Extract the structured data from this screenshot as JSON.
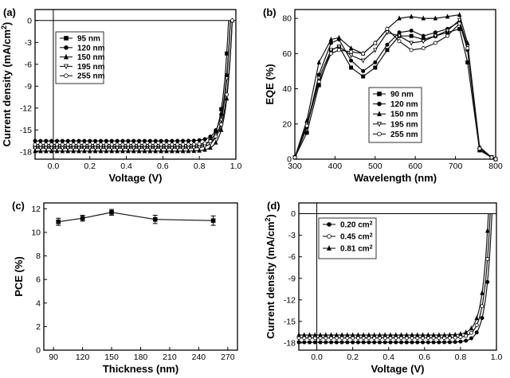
{
  "chart_data": [
    {
      "panel": "(a)",
      "type": "line",
      "xlabel": "Voltage (V)",
      "ylabel": "Current density (mA/cm",
      "ylabel_sup": "2",
      "ylabel_end": ")",
      "xlim": [
        -0.1,
        1.0
      ],
      "ylim": [
        -19,
        1.5
      ],
      "xticks": [
        0.0,
        0.2,
        0.4,
        0.6,
        0.8,
        1.0
      ],
      "xtick_labels": [
        "0.0",
        "0.2",
        "0.4",
        "0.6",
        "0.8",
        "1.0"
      ],
      "yticks": [
        0,
        -3,
        -6,
        -9,
        -12,
        -15,
        -18
      ],
      "ytick_labels": [
        "0",
        "-3",
        "-6",
        "-9",
        "-12",
        "-15",
        "-18"
      ],
      "legend_position": "top-left",
      "series": [
        {
          "name": "95 nm",
          "marker": "square",
          "jsc": -17.3,
          "voc": 0.96
        },
        {
          "name": "120 nm",
          "marker": "circle",
          "jsc": -16.5,
          "voc": 0.97
        },
        {
          "name": "150 nm",
          "marker": "triangle",
          "jsc": -17.9,
          "voc": 0.98
        },
        {
          "name": "195 nm",
          "marker": "triangle-down-open",
          "jsc": -17.5,
          "voc": 0.97
        },
        {
          "name": "255 nm",
          "marker": "circle-open",
          "jsc": -17.0,
          "voc": 0.98
        }
      ]
    },
    {
      "panel": "(b)",
      "type": "line",
      "xlabel": "Wavelength (nm)",
      "ylabel": "EQE (%)",
      "xlim": [
        300,
        800
      ],
      "ylim": [
        0,
        85
      ],
      "xticks": [
        300,
        400,
        500,
        600,
        700,
        800
      ],
      "xtick_labels": [
        "300",
        "400",
        "500",
        "600",
        "700",
        "800"
      ],
      "yticks": [
        0,
        20,
        40,
        60,
        80
      ],
      "ytick_labels": [
        "0",
        "20",
        "40",
        "60",
        "80"
      ],
      "legend_position": "bottom-center",
      "series": [
        {
          "name": "90 nm",
          "marker": "square",
          "x": [
            300,
            330,
            360,
            390,
            410,
            440,
            470,
            500,
            530,
            560,
            590,
            620,
            650,
            680,
            710,
            730,
            760,
            790,
            800
          ],
          "values": [
            1,
            15,
            42,
            62,
            64,
            52,
            47,
            52,
            62,
            70,
            70,
            68,
            70,
            72,
            74,
            55,
            5,
            1,
            0
          ]
        },
        {
          "name": "120 nm",
          "marker": "circle",
          "x": [
            300,
            330,
            360,
            390,
            410,
            440,
            470,
            500,
            530,
            560,
            590,
            620,
            650,
            680,
            710,
            730,
            760,
            790,
            800
          ],
          "values": [
            1,
            18,
            48,
            66,
            68,
            56,
            50,
            55,
            65,
            72,
            73,
            70,
            72,
            74,
            78,
            62,
            6,
            1,
            0
          ]
        },
        {
          "name": "150 nm",
          "marker": "triangle",
          "x": [
            300,
            330,
            360,
            390,
            410,
            440,
            470,
            500,
            530,
            560,
            590,
            620,
            650,
            680,
            710,
            730,
            760,
            790,
            800
          ],
          "values": [
            1,
            22,
            55,
            68,
            69,
            63,
            60,
            66,
            74,
            80,
            81,
            80,
            80,
            81,
            82,
            66,
            7,
            1,
            0
          ]
        },
        {
          "name": "195 nm",
          "marker": "triangle-down-open",
          "x": [
            300,
            330,
            360,
            390,
            410,
            440,
            470,
            500,
            530,
            560,
            590,
            620,
            650,
            680,
            710,
            730,
            760,
            790,
            800
          ],
          "values": [
            1,
            20,
            46,
            62,
            64,
            59,
            56,
            62,
            72,
            70,
            66,
            67,
            70,
            73,
            79,
            64,
            6,
            1,
            0
          ]
        },
        {
          "name": "255 nm",
          "marker": "circle-open",
          "x": [
            300,
            330,
            360,
            390,
            410,
            440,
            470,
            500,
            530,
            560,
            590,
            620,
            650,
            680,
            710,
            730,
            760,
            790,
            800
          ],
          "values": [
            1,
            19,
            44,
            60,
            62,
            61,
            60,
            66,
            74,
            67,
            62,
            63,
            66,
            70,
            77,
            63,
            6,
            1,
            0
          ]
        }
      ]
    },
    {
      "panel": "(c)",
      "type": "line",
      "xlabel": "Thickness (nm)",
      "ylabel": "PCE (%)",
      "xlim": [
        80,
        280
      ],
      "ylim": [
        0,
        12.5
      ],
      "xticks": [
        90,
        120,
        150,
        180,
        210,
        240,
        270
      ],
      "xtick_labels": [
        "90",
        "120",
        "150",
        "180",
        "210",
        "240",
        "270"
      ],
      "yticks": [
        0,
        2,
        4,
        6,
        8,
        10,
        12
      ],
      "ytick_labels": [
        "0",
        "2",
        "4",
        "6",
        "8",
        "10",
        "12"
      ],
      "series": [
        {
          "name": "PCE",
          "x": [
            95,
            120,
            150,
            195,
            255
          ],
          "values": [
            10.9,
            11.2,
            11.7,
            11.1,
            11.0
          ],
          "errors": [
            0.3,
            0.25,
            0.25,
            0.35,
            0.4
          ]
        }
      ]
    },
    {
      "panel": "(d)",
      "type": "line",
      "xlabel": "Voltage (V)",
      "ylabel": "Current density (mA/cm",
      "ylabel_sup": "2",
      "ylabel_end": ")",
      "xlim": [
        -0.1,
        1.0
      ],
      "ylim": [
        -19,
        1.5
      ],
      "xticks": [
        0.0,
        0.2,
        0.4,
        0.6,
        0.8,
        1.0
      ],
      "xtick_labels": [
        "0.0",
        "0.2",
        "0.4",
        "0.6",
        "0.8",
        "1.0"
      ],
      "yticks": [
        0,
        -3,
        -6,
        -9,
        -12,
        -15,
        -18
      ],
      "ytick_labels": [
        "0",
        "-3",
        "-6",
        "-9",
        "-12",
        "-15",
        "-18"
      ],
      "legend_position": "top-left",
      "series": [
        {
          "name": "0.20 cm",
          "name_sup": "2",
          "marker": "circle",
          "jsc": -17.9,
          "voc": 0.975
        },
        {
          "name": "0.45 cm",
          "name_sup": "2",
          "marker": "circle-open",
          "jsc": -17.3,
          "voc": 0.965
        },
        {
          "name": "0.81 cm",
          "name_sup": "2",
          "marker": "triangle",
          "jsc": -16.9,
          "voc": 0.955
        }
      ]
    }
  ]
}
